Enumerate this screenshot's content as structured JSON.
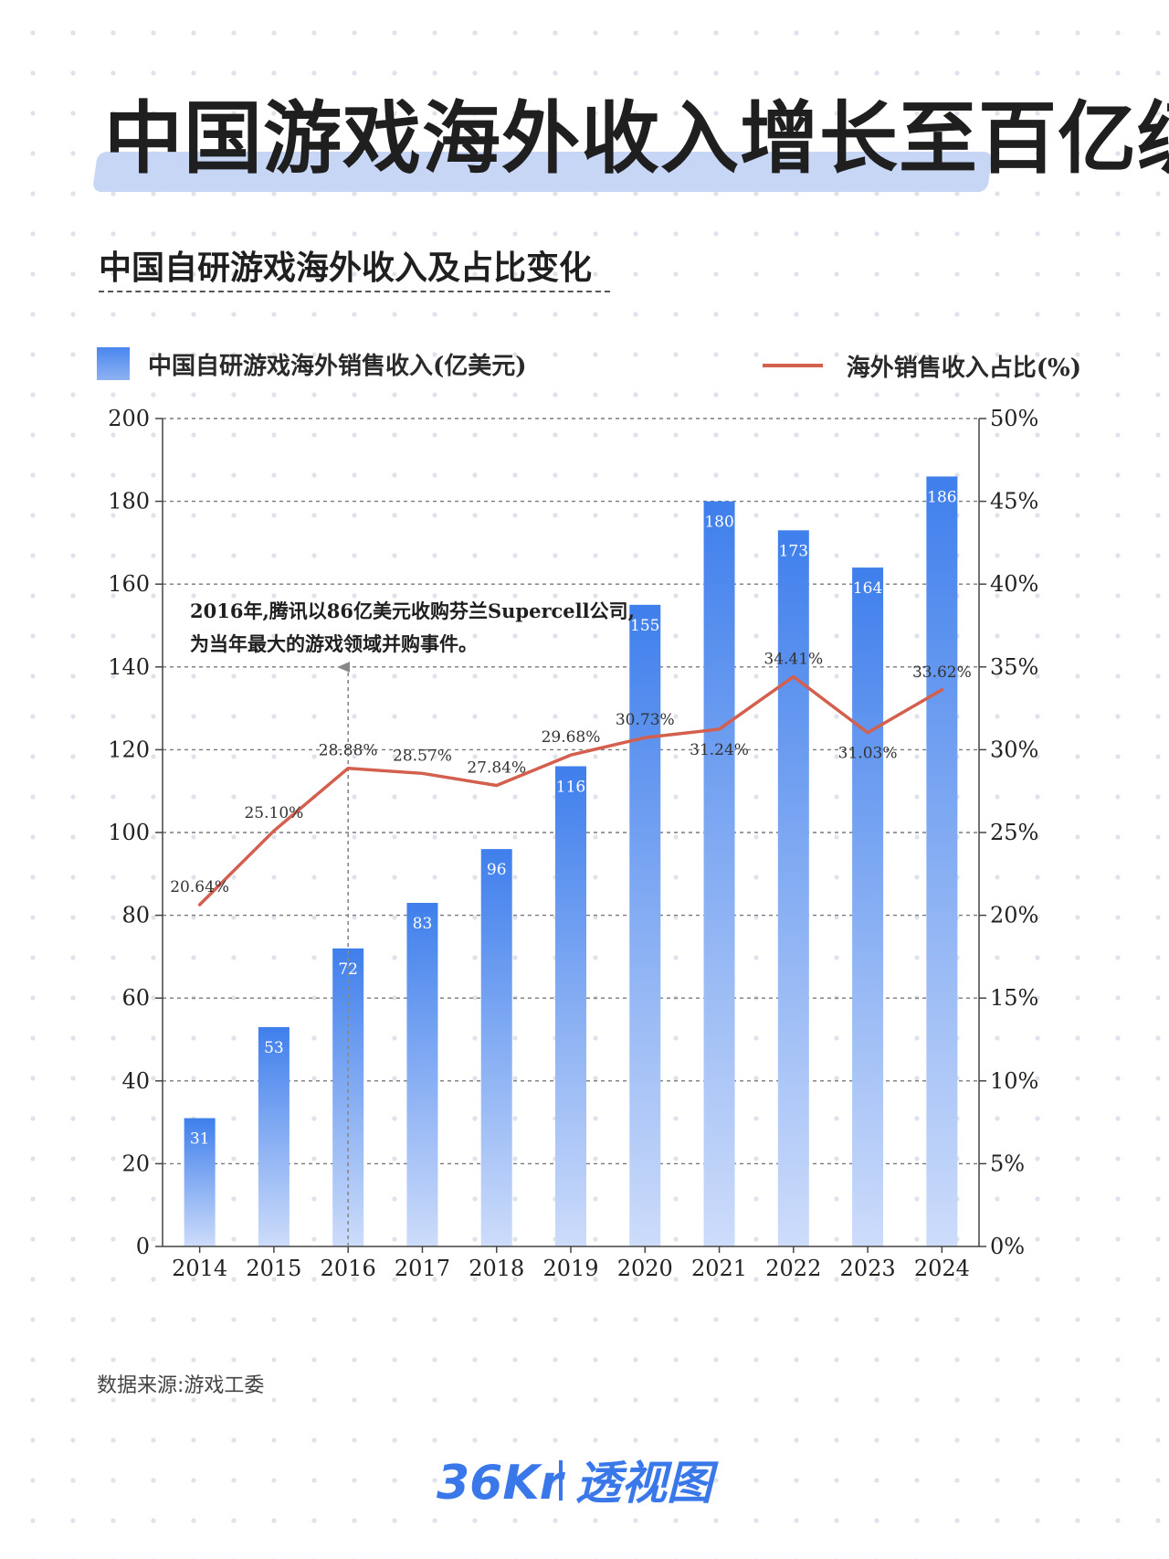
{
  "header": {
    "title": "中国游戏海外收入增长至百亿级",
    "subtitle": "中国自研游戏海外收入及占比变化"
  },
  "legend": {
    "bar_label": "中国自研游戏海外销售收入(亿美元)",
    "line_label": "海外销售收入占比(%)"
  },
  "annotation": {
    "line1": "2016年,腾讯以86亿美元收购芬兰Supercell公司,",
    "line2": "为当年最大的游戏领域并购事件。"
  },
  "footer": {
    "source": "数据来源:游戏工委",
    "logo_text": "36Kr",
    "logo_sub": "透视图"
  },
  "colors": {
    "bar_top": "#3f7fec",
    "bar_bottom": "#c9dafa",
    "line": "#d35f4f",
    "title_highlight": "#c6d6f4"
  },
  "chart_data": {
    "type": "bar",
    "categories": [
      "2014",
      "2015",
      "2016",
      "2017",
      "2018",
      "2019",
      "2020",
      "2021",
      "2022",
      "2023",
      "2024"
    ],
    "series": [
      {
        "name": "中国自研游戏海外销售收入(亿美元)",
        "type": "bar",
        "axis": "left",
        "values": [
          31,
          53,
          72,
          83,
          96,
          116,
          155,
          180,
          173,
          164,
          186
        ],
        "labels": [
          "31",
          "53",
          "72",
          "83",
          "96",
          "116",
          "155",
          "180",
          "173",
          "164",
          "186"
        ]
      },
      {
        "name": "海外销售收入占比(%)",
        "type": "line",
        "axis": "right",
        "values": [
          20.64,
          25.1,
          28.88,
          28.57,
          27.84,
          29.68,
          30.73,
          31.24,
          34.41,
          31.03,
          33.62
        ],
        "labels": [
          "20.64%",
          "25.10%",
          "28.88%",
          "28.57%",
          "27.84%",
          "29.68%",
          "30.73%",
          "31.24%",
          "34.41%",
          "31.03%",
          "33.62%"
        ]
      }
    ],
    "y_left": {
      "min": 0,
      "max": 200,
      "ticks": [
        0,
        20,
        40,
        60,
        80,
        100,
        120,
        140,
        160,
        180,
        200
      ],
      "tick_labels": [
        "0",
        "20",
        "40",
        "60",
        "80",
        "100",
        "120",
        "140",
        "160",
        "180",
        "200"
      ]
    },
    "y_right": {
      "min": 0,
      "max": 50,
      "ticks": [
        0,
        5,
        10,
        15,
        20,
        25,
        30,
        35,
        40,
        45,
        50
      ],
      "tick_labels": [
        "0%",
        "5%",
        "10%",
        "15%",
        "20%",
        "25%",
        "30%",
        "35%",
        "40%",
        "45%",
        "50%"
      ]
    },
    "grid": true,
    "legend_position": "top"
  }
}
